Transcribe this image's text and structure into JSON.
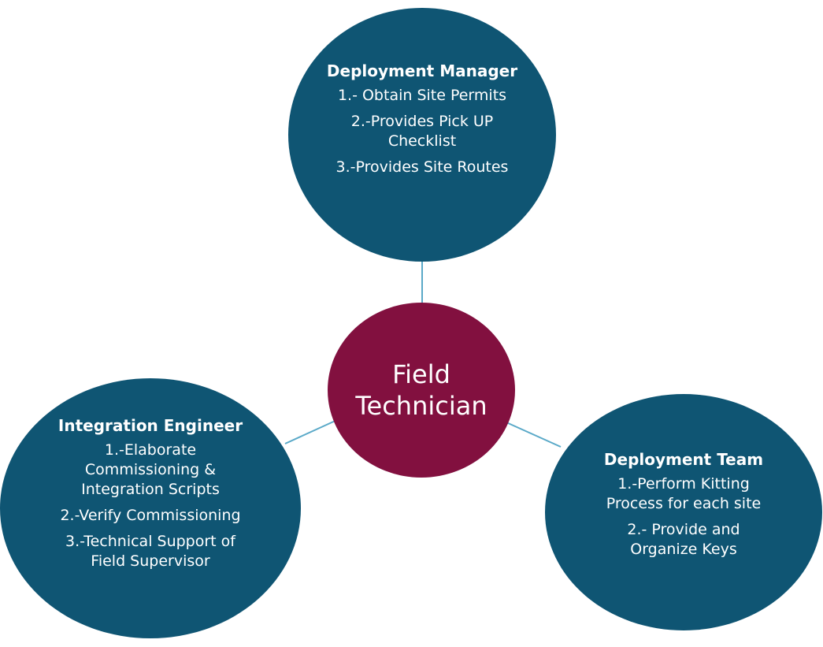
{
  "center": {
    "label": "Field\nTechnician",
    "color": "#82103f"
  },
  "nodes": {
    "deployment_manager": {
      "title": "Deployment Manager",
      "items": [
        "1.- Obtain Site Permits",
        "2.-Provides Pick UP\nChecklist",
        "3.-Provides Site Routes"
      ]
    },
    "integration_engineer": {
      "title": "Integration Engineer",
      "items": [
        "1.-Elaborate\nCommissioning &\nIntegration Scripts",
        "2.-Verify Commissioning",
        "3.-Technical Support of\nField Supervisor"
      ]
    },
    "deployment_team": {
      "title": "Deployment Team",
      "items": [
        "1.-Perform Kitting\nProcess for each site",
        "2.- Provide and\nOrganize Keys"
      ]
    }
  },
  "colors": {
    "outer_node": "#0f5573",
    "center_node": "#82103f",
    "connector": "#5aa9c8"
  }
}
